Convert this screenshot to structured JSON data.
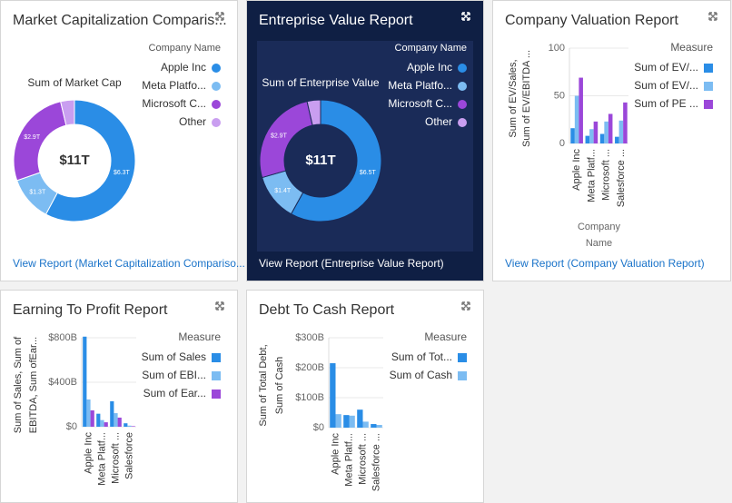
{
  "chart_data": [
    {
      "type": "donut",
      "title": "Market Capitalization Comparis...",
      "subtitle": "Sum of Market Cap",
      "legend_title": "Company Name",
      "categories": [
        "Apple Inc",
        "Meta Platfo...",
        "Microsoft C...",
        "Other"
      ],
      "values": [
        6.3,
        1.3,
        2.9,
        0.4
      ],
      "value_labels": [
        "$6.3T",
        "$1.3T",
        "$2.9T",
        null
      ],
      "colors": [
        "#2a8de6",
        "#7cbcf2",
        "#9b47d9",
        "#c99ef0"
      ],
      "center_label": {
        "value": 11,
        "label": "$11T"
      },
      "link": "View Report (Market Capitalization Compariso...",
      "background": "#ffffff"
    },
    {
      "type": "donut",
      "title": "Entreprise Value Report",
      "subtitle": "Sum of Enterprise Value",
      "legend_title": "Company Name",
      "categories": [
        "Apple Inc",
        "Meta Platfo...",
        "Microsoft C...",
        "Other"
      ],
      "values": [
        6.5,
        1.4,
        2.9,
        0.4
      ],
      "value_labels": [
        "$6.5T",
        "$1.4T",
        "$2.9T",
        null
      ],
      "colors": [
        "#2a8de6",
        "#7cbcf2",
        "#9b47d9",
        "#c99ef0"
      ],
      "center_label": {
        "value": 11,
        "label": "$11T"
      },
      "link": "View Report (Entreprise Value Report)",
      "background": "#0f1f44"
    },
    {
      "type": "bar",
      "title": "Company Valuation Report",
      "legend_title": "Measure",
      "y_label_lines": [
        "Sum of EV/Sales,",
        "Sum of EV/EBITDA ..."
      ],
      "x_label_lines": [
        "Company",
        "Name"
      ],
      "categories": [
        "Apple Inc",
        "Meta Platf...",
        "Microsoft ...",
        "Salesforce ..."
      ],
      "series": [
        {
          "name": "Sum of EV/...",
          "color": "#2a8de6",
          "values": [
            16,
            8,
            10,
            7
          ]
        },
        {
          "name": "Sum of EV/...",
          "color": "#7cbcf2",
          "values": [
            50,
            15,
            23,
            24
          ]
        },
        {
          "name": "Sum of PE ...",
          "color": "#9b47d9",
          "values": [
            69,
            23,
            31,
            43
          ]
        }
      ],
      "ylim": [
        0,
        100
      ],
      "yticks": [
        0,
        50,
        100
      ],
      "grid": true,
      "link": "View Report (Company Valuation Report)",
      "background": "#ffffff"
    },
    {
      "type": "bar",
      "title": "Earning To Profit Report",
      "legend_title": "Measure",
      "y_label_lines": [
        "Sum of Sales, Sum of",
        "EBITDA, Sum ofEar..."
      ],
      "categories": [
        "Apple Inc",
        "Meta Platf...",
        "Microsoft ...",
        "Salesforce"
      ],
      "series": [
        {
          "name": "Sum of Sales",
          "color": "#2a8de6",
          "values": [
            810,
            117,
            229,
            31
          ]
        },
        {
          "name": "Sum of EBI...",
          "color": "#7cbcf2",
          "values": [
            245,
            60,
            122,
            10
          ]
        },
        {
          "name": "Sum of Ear...",
          "color": "#9b47d9",
          "values": [
            147,
            40,
            82,
            5
          ]
        }
      ],
      "ylim": [
        0,
        800
      ],
      "yticks": [
        {
          "value": 0,
          "label": "$0"
        },
        {
          "value": 400,
          "label": "$400B"
        },
        {
          "value": 800,
          "label": "$800B"
        }
      ],
      "grid": true,
      "background": "#ffffff"
    },
    {
      "type": "bar",
      "title": "Debt To Cash Report",
      "legend_title": "Measure",
      "y_label_lines": [
        "Sum of Total Debt,",
        "Sum of Cash"
      ],
      "categories": [
        "Apple Inc",
        "Meta Platf...",
        "Microsoft ...",
        "Salesforce ..."
      ],
      "series": [
        {
          "name": "Sum of Tot...",
          "color": "#2a8de6",
          "values": [
            215,
            42,
            60,
            12
          ]
        },
        {
          "name": "Sum of Cash",
          "color": "#7cbcf2",
          "values": [
            45,
            40,
            20,
            9
          ]
        }
      ],
      "ylim": [
        0,
        300
      ],
      "yticks": [
        {
          "value": 0,
          "label": "$0"
        },
        {
          "value": 100,
          "label": "$100B"
        },
        {
          "value": 200,
          "label": "$200B"
        },
        {
          "value": 300,
          "label": "$300B"
        }
      ],
      "grid": true,
      "background": "#ffffff"
    }
  ]
}
